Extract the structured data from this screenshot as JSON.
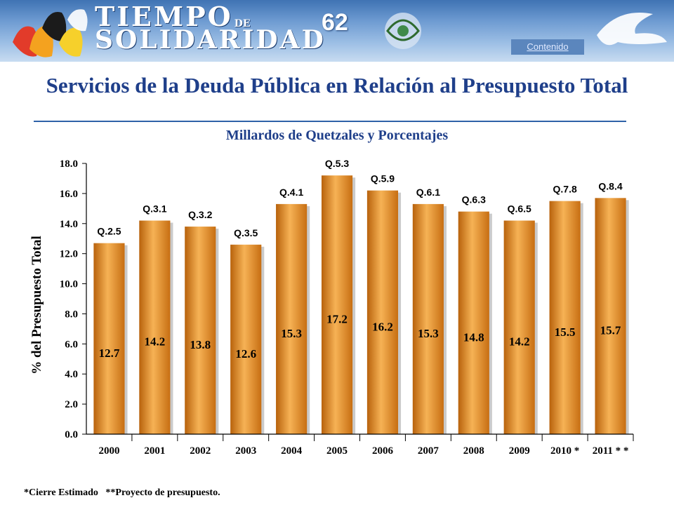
{
  "header": {
    "brand_line1": "TIEMPO",
    "brand_line1_small": "DE",
    "brand_line2": "SOLIDARIDAD",
    "page_number": "62",
    "contents_link": "Contenido"
  },
  "page": {
    "title": "Servicios de la Deuda Pública en Relación al Presupuesto Total",
    "subtitle": "Millardos de Quetzales y Porcentajes",
    "footnote": "*Cierre Estimado   **Proyecto de presupuesto."
  },
  "colors": {
    "accent": "#1f3f8a",
    "bar": "#e08a1e",
    "bar_highlight": "#f6b255"
  },
  "chart_data": {
    "type": "bar",
    "ylabel": "% del Presupuesto Total",
    "ylim": [
      0,
      18
    ],
    "yticks": [
      "0.0",
      "2.0",
      "4.0",
      "6.0",
      "8.0",
      "10.0",
      "12.0",
      "14.0",
      "16.0",
      "18.0"
    ],
    "categories": [
      "2000",
      "2001",
      "2002",
      "2003",
      "2004",
      "2005",
      "2006",
      "2007",
      "2008",
      "2009",
      "2010 *",
      "2011 * *"
    ],
    "values": [
      12.7,
      14.2,
      13.8,
      12.6,
      15.3,
      17.2,
      16.2,
      15.3,
      14.8,
      14.2,
      15.5,
      15.7
    ],
    "value_labels": [
      "12.7",
      "14.2",
      "13.8",
      "12.6",
      "15.3",
      "17.2",
      "16.2",
      "15.3",
      "14.8",
      "14.2",
      "15.5",
      "15.7"
    ],
    "amount_labels": [
      "Q.2.5",
      "Q.3.1",
      "Q.3.2",
      "Q.3.5",
      "Q.4.1",
      "Q.5.3",
      "Q.5.9",
      "Q.6.1",
      "Q.6.3",
      "Q.6.5",
      "Q.7.8",
      "Q.8.4"
    ],
    "grid": false,
    "legend": "none"
  }
}
